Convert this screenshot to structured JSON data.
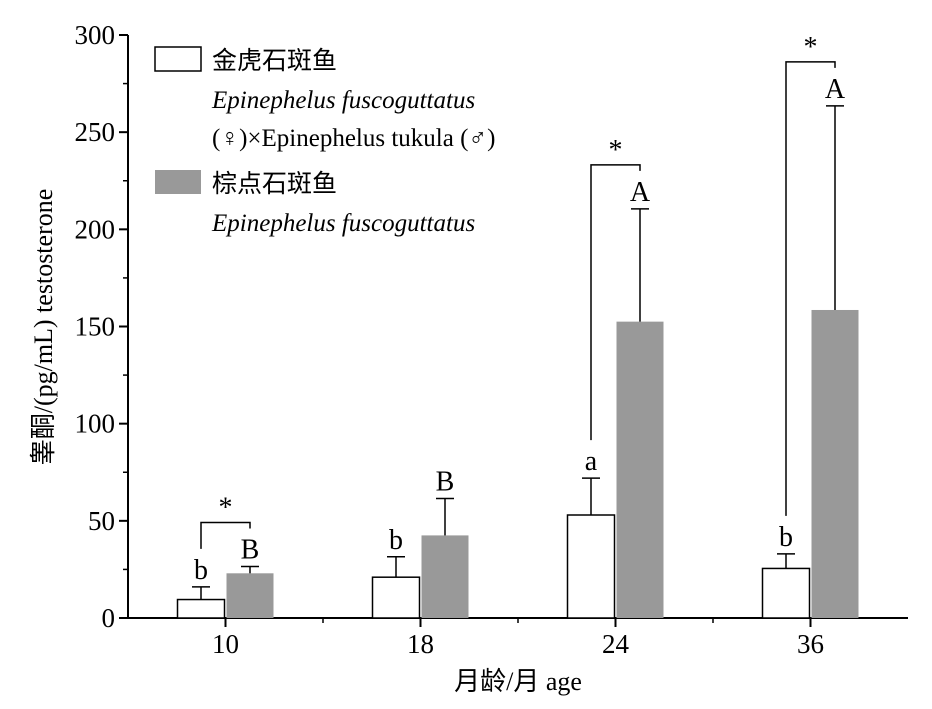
{
  "chart_data": {
    "type": "bar",
    "xlabel": "月龄/月 age",
    "ylabel": "睾酮/(pg/mL) testosterone",
    "ylim": [
      0,
      300
    ],
    "yticks": [
      0,
      50,
      100,
      150,
      200,
      250,
      300
    ],
    "categories": [
      "10",
      "18",
      "24",
      "36"
    ],
    "series": [
      {
        "legend_cn": "金虎石斑鱼",
        "legend_line1": "Epinephelus fuscoguttatus",
        "legend_line2": "(♀)×Epinephelus tukula (♂)",
        "color": "#ffffff",
        "values": [
          9.5,
          21,
          53,
          25.5
        ],
        "errors": [
          6.5,
          10.5,
          19,
          7.5
        ],
        "letters": [
          "b",
          "b",
          "a",
          "b"
        ]
      },
      {
        "legend_cn": "棕点石斑鱼",
        "legend_line1": "Epinephelus fuscoguttatus",
        "legend_line2": "",
        "color": "#999999",
        "values": [
          23,
          42.5,
          152.5,
          158.5
        ],
        "errors": [
          3.5,
          19,
          58,
          105
        ],
        "letters": [
          "B",
          "B",
          "A",
          "A"
        ]
      }
    ],
    "significance": [
      "*",
      "",
      "*",
      "*"
    ],
    "legend_position": "top-left",
    "grid": false
  }
}
